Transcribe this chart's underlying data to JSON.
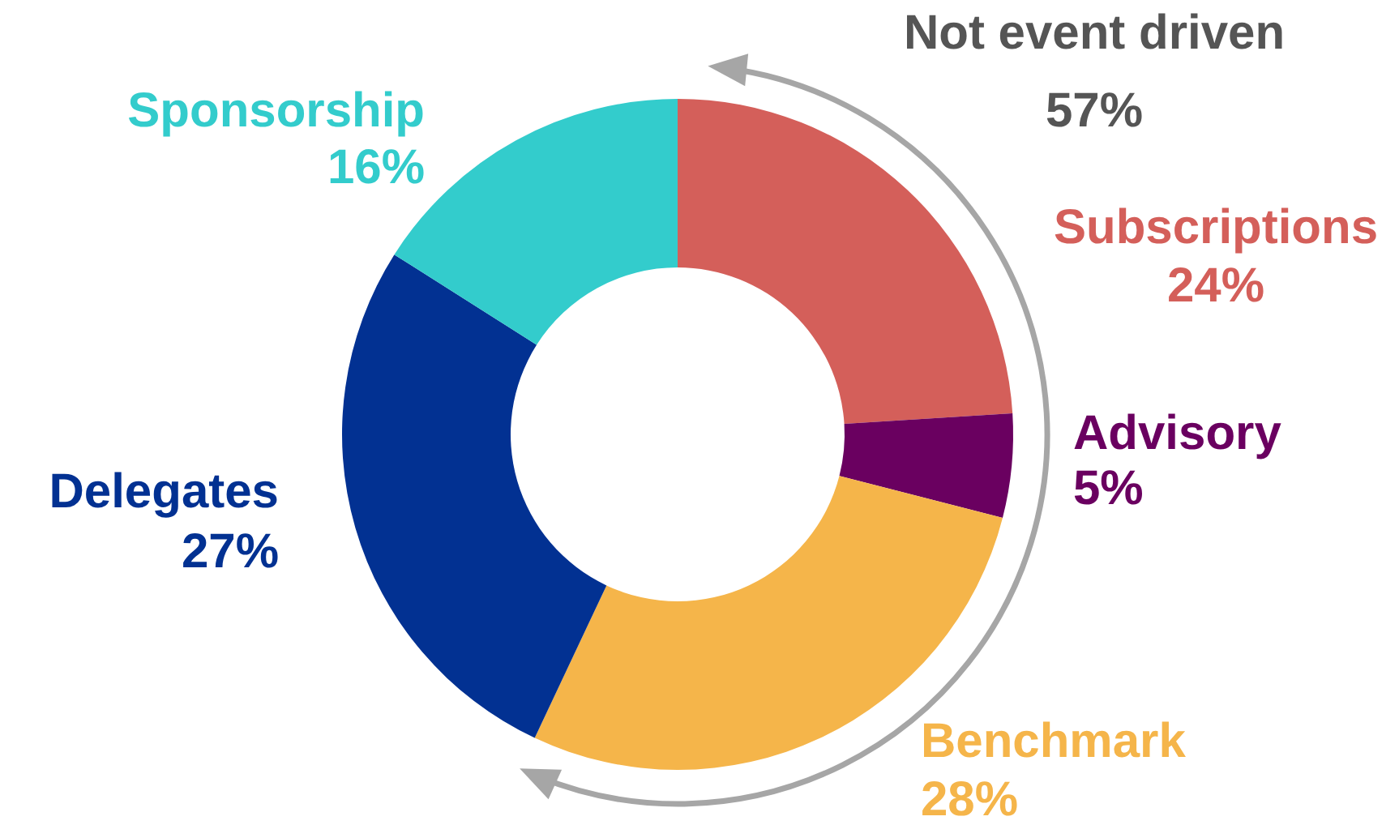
{
  "chart_data": {
    "type": "donut",
    "categories": [
      "Subscriptions",
      "Advisory",
      "Benchmark",
      "Delegates",
      "Sponsorship"
    ],
    "values": [
      24,
      5,
      28,
      27,
      16
    ],
    "colors": [
      "#d45f5a",
      "#6a0060",
      "#f5b54a",
      "#023192",
      "#33cccc"
    ],
    "value_labels": [
      "24%",
      "5%",
      "28%",
      "27%",
      "16%"
    ],
    "annotations": [
      "Not event driven",
      "57%"
    ]
  }
}
